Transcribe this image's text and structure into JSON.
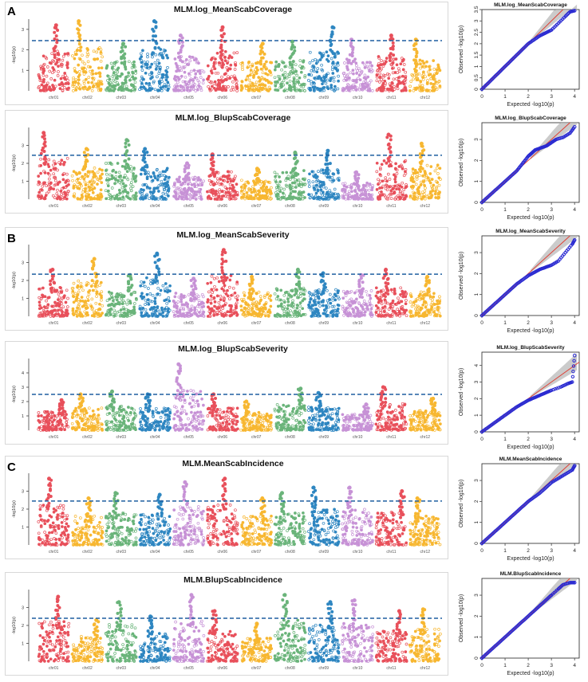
{
  "figure": {
    "panel_labels": [
      "A",
      "B",
      "C"
    ],
    "chromosome_labels": [
      "chr01",
      "chr02",
      "chr03",
      "chr04",
      "chr05",
      "chr06",
      "chr07",
      "chr08",
      "chr09",
      "chr10",
      "chr11",
      "chr12"
    ],
    "chromosome_colors": [
      "#e8505b",
      "#f7b731",
      "#6ab47a",
      "#2e86c1",
      "#c792d6",
      "#e8505b",
      "#f7b731",
      "#6ab47a",
      "#2e86c1",
      "#c792d6",
      "#e8505b",
      "#f7b731"
    ],
    "threshold_color": "#1f5fa0",
    "qq_point_color": "#2a2ad1",
    "qq_line_color": "#e03a2f",
    "qq_band_color": "#b9b9b9"
  },
  "chart_data": [
    {
      "type": "scatter",
      "subtype": "manhattan",
      "title": "MLM.log_MeanScabCoverage",
      "ylabel": "-log10(p)",
      "ylim": [
        0,
        3.5
      ],
      "yticks": [
        1,
        2,
        3
      ],
      "threshold": 2.45,
      "chromosomes": [
        "chr01",
        "chr02",
        "chr03",
        "chr04",
        "chr05",
        "chr06",
        "chr07",
        "chr08",
        "chr09",
        "chr10",
        "chr11",
        "chr12"
      ],
      "peak_max": [
        3.2,
        3.4,
        2.3,
        3.4,
        2.7,
        3.1,
        2.3,
        2.4,
        3.1,
        2.5,
        2.7,
        2.5
      ]
    },
    {
      "type": "scatter",
      "subtype": "qq",
      "title": "MLM.log_MeanScabCoverage",
      "xlabel": "Expected -log10(p)",
      "ylabel": "Observed -log10(p)",
      "xlim": [
        0,
        4.2
      ],
      "ylim": [
        0,
        3.5
      ],
      "xticks": [
        0,
        1,
        2,
        3,
        4
      ],
      "yticks": [
        0,
        0.5,
        1,
        1.5,
        2,
        2.5,
        3,
        3.5
      ],
      "points": [
        [
          0,
          0
        ],
        [
          0.5,
          0.5
        ],
        [
          1,
          1.0
        ],
        [
          1.5,
          1.5
        ],
        [
          2,
          2.0
        ],
        [
          2.5,
          2.35
        ],
        [
          3,
          2.6
        ],
        [
          3.3,
          2.9
        ],
        [
          3.6,
          3.2
        ],
        [
          3.8,
          3.4
        ],
        [
          4.0,
          3.45
        ]
      ]
    },
    {
      "type": "scatter",
      "subtype": "manhattan",
      "title": "MLM.log_BlupScabCoverage",
      "ylabel": "-log10(p)",
      "ylim": [
        0,
        4
      ],
      "yticks": [
        1,
        2,
        3
      ],
      "threshold": 2.45,
      "chromosomes": [
        "chr01",
        "chr02",
        "chr03",
        "chr04",
        "chr05",
        "chr06",
        "chr07",
        "chr08",
        "chr09",
        "chr10",
        "chr11",
        "chr12"
      ],
      "peak_max": [
        3.7,
        2.8,
        3.3,
        2.8,
        2.0,
        2.5,
        1.7,
        2.6,
        2.7,
        1.5,
        3.6,
        3.1
      ]
    },
    {
      "type": "scatter",
      "subtype": "qq",
      "title": "MLM.log_BlupScabCoverage",
      "xlabel": "Expected -log10(p)",
      "ylabel": "Observed -log10(p)",
      "xlim": [
        0,
        4.2
      ],
      "ylim": [
        0,
        3.8
      ],
      "xticks": [
        0,
        1,
        2,
        3,
        4
      ],
      "yticks": [
        0,
        1,
        2,
        3
      ],
      "points": [
        [
          0,
          0
        ],
        [
          0.5,
          0.5
        ],
        [
          1,
          1.0
        ],
        [
          1.5,
          1.5
        ],
        [
          2,
          2.2
        ],
        [
          2.3,
          2.5
        ],
        [
          2.8,
          2.7
        ],
        [
          3.2,
          3.0
        ],
        [
          3.5,
          3.1
        ],
        [
          3.8,
          3.3
        ],
        [
          4.0,
          3.6
        ]
      ]
    },
    {
      "type": "scatter",
      "subtype": "manhattan",
      "title": "MLM.log_MeanScabSeverity",
      "ylabel": "-log10(p)",
      "ylim": [
        0,
        4
      ],
      "yticks": [
        1,
        2,
        3
      ],
      "threshold": 2.35,
      "chromosomes": [
        "chr01",
        "chr02",
        "chr03",
        "chr04",
        "chr05",
        "chr06",
        "chr07",
        "chr08",
        "chr09",
        "chr10",
        "chr11",
        "chr12"
      ],
      "peak_max": [
        2.6,
        3.2,
        2.3,
        3.5,
        2.1,
        3.7,
        2.2,
        2.6,
        2.4,
        2.3,
        2.6,
        2.2
      ]
    },
    {
      "type": "scatter",
      "subtype": "qq",
      "title": "MLM.log_MeanScabSeverity",
      "xlabel": "Expected -log10(p)",
      "ylabel": "Observed -log10(p)",
      "xlim": [
        0,
        4.2
      ],
      "ylim": [
        0,
        3.8
      ],
      "xticks": [
        0,
        1,
        2,
        3,
        4
      ],
      "yticks": [
        0,
        1,
        2,
        3
      ],
      "points": [
        [
          0,
          0
        ],
        [
          0.5,
          0.5
        ],
        [
          1,
          1.0
        ],
        [
          1.5,
          1.5
        ],
        [
          2,
          1.9
        ],
        [
          2.5,
          2.2
        ],
        [
          3,
          2.4
        ],
        [
          3.3,
          2.6
        ],
        [
          3.6,
          3.0
        ],
        [
          3.9,
          3.4
        ],
        [
          4.0,
          3.6
        ]
      ]
    },
    {
      "type": "scatter",
      "subtype": "manhattan",
      "title": "MLM.log_BlupScabSeverity",
      "ylabel": "-log10(p)",
      "ylim": [
        0,
        5
      ],
      "yticks": [
        1,
        2,
        3,
        4
      ],
      "threshold": 2.5,
      "chromosomes": [
        "chr01",
        "chr02",
        "chr03",
        "chr04",
        "chr05",
        "chr06",
        "chr07",
        "chr08",
        "chr09",
        "chr10",
        "chr11",
        "chr12"
      ],
      "peak_max": [
        2.1,
        2.5,
        2.7,
        2.5,
        4.6,
        2.5,
        2.0,
        2.9,
        2.6,
        1.8,
        3.0,
        2.2
      ]
    },
    {
      "type": "scatter",
      "subtype": "qq",
      "title": "MLM.log_BlupScabSeverity",
      "xlabel": "Expected -log10(p)",
      "ylabel": "Observed -log10(p)",
      "xlim": [
        0,
        4.2
      ],
      "ylim": [
        0,
        4.8
      ],
      "xticks": [
        0,
        1,
        2,
        3,
        4
      ],
      "yticks": [
        0,
        1,
        2,
        3,
        4
      ],
      "points": [
        [
          0,
          0
        ],
        [
          0.5,
          0.5
        ],
        [
          1,
          1.0
        ],
        [
          1.5,
          1.5
        ],
        [
          2,
          1.9
        ],
        [
          2.5,
          2.2
        ],
        [
          3,
          2.5
        ],
        [
          3.4,
          2.7
        ],
        [
          3.7,
          2.9
        ],
        [
          3.9,
          3.0
        ],
        [
          4.0,
          4.6
        ]
      ]
    },
    {
      "type": "scatter",
      "subtype": "manhattan",
      "title": "MLM.MeanScabIncidence",
      "ylabel": "-log10(p)",
      "ylim": [
        0,
        4
      ],
      "yticks": [
        1,
        2,
        3
      ],
      "threshold": 2.45,
      "chromosomes": [
        "chr01",
        "chr02",
        "chr03",
        "chr04",
        "chr05",
        "chr06",
        "chr07",
        "chr08",
        "chr09",
        "chr10",
        "chr11",
        "chr12"
      ],
      "peak_max": [
        3.7,
        2.6,
        2.9,
        2.8,
        3.5,
        3.7,
        2.6,
        2.9,
        3.2,
        3.2,
        3.0,
        2.6
      ]
    },
    {
      "type": "scatter",
      "subtype": "qq",
      "title": "MLM.MeanScabIncidence",
      "xlabel": "Expected -log10(p)",
      "ylabel": "Observed -log10(p)",
      "xlim": [
        0,
        4.2
      ],
      "ylim": [
        0,
        3.8
      ],
      "xticks": [
        0,
        1,
        2,
        3,
        4
      ],
      "yticks": [
        0,
        1,
        2,
        3
      ],
      "points": [
        [
          0,
          0
        ],
        [
          0.5,
          0.5
        ],
        [
          1,
          1.0
        ],
        [
          1.5,
          1.5
        ],
        [
          2,
          2.0
        ],
        [
          2.5,
          2.4
        ],
        [
          3,
          2.9
        ],
        [
          3.3,
          3.1
        ],
        [
          3.6,
          3.3
        ],
        [
          3.9,
          3.5
        ],
        [
          4.0,
          3.7
        ]
      ]
    },
    {
      "type": "scatter",
      "subtype": "manhattan",
      "title": "MLM.BlupScabIncidence",
      "ylabel": "-log10(p)",
      "ylim": [
        0,
        4
      ],
      "yticks": [
        1,
        2,
        3
      ],
      "threshold": 2.4,
      "chromosomes": [
        "chr01",
        "chr02",
        "chr03",
        "chr04",
        "chr05",
        "chr06",
        "chr07",
        "chr08",
        "chr09",
        "chr10",
        "chr11",
        "chr12"
      ],
      "peak_max": [
        3.6,
        2.3,
        3.3,
        2.5,
        3.7,
        2.8,
        2.1,
        3.7,
        3.3,
        3.4,
        2.8,
        2.9
      ]
    },
    {
      "type": "scatter",
      "subtype": "qq",
      "title": "MLM.BlupScabIncidence",
      "xlabel": "Expected -log10(p)",
      "ylabel": "Observed -log10(p)",
      "xlim": [
        0,
        4.2
      ],
      "ylim": [
        0,
        3.8
      ],
      "xticks": [
        0,
        1,
        2,
        3,
        4
      ],
      "yticks": [
        0,
        1,
        2,
        3
      ],
      "points": [
        [
          0,
          0
        ],
        [
          0.5,
          0.5
        ],
        [
          1,
          1.0
        ],
        [
          1.5,
          1.5
        ],
        [
          2,
          2.0
        ],
        [
          2.5,
          2.5
        ],
        [
          3,
          3.0
        ],
        [
          3.3,
          3.3
        ],
        [
          3.5,
          3.5
        ],
        [
          3.8,
          3.6
        ],
        [
          4.0,
          3.6
        ]
      ]
    }
  ]
}
